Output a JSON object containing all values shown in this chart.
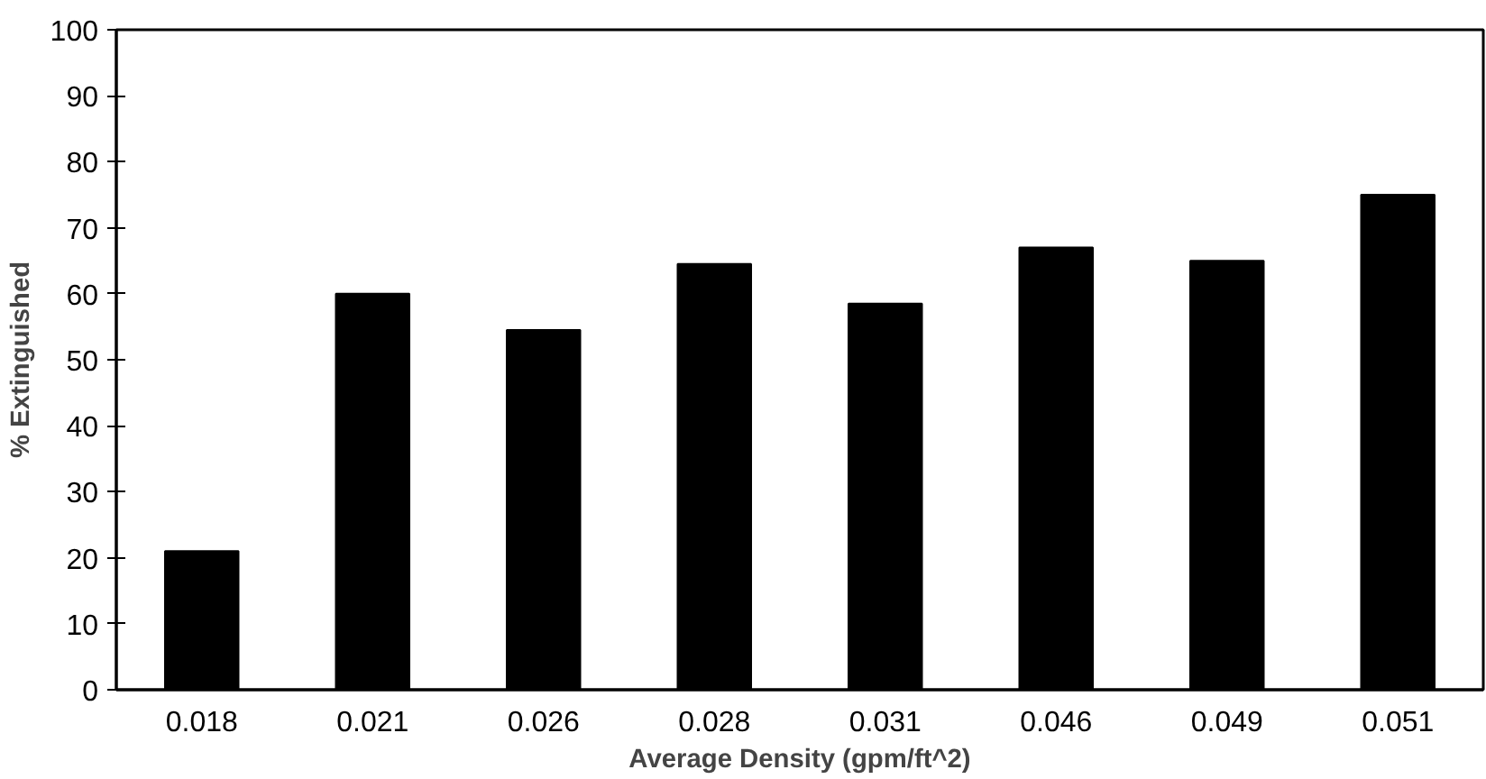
{
  "chart_data": {
    "type": "bar",
    "xlabel": "Average Density (gpm/ft^2)",
    "ylabel": "% Extinguished",
    "categories": [
      "0.018",
      "0.021",
      "0.026",
      "0.028",
      "0.031",
      "0.046",
      "0.049",
      "0.051"
    ],
    "values": [
      21,
      60,
      54.5,
      64.5,
      58.5,
      67,
      65,
      75
    ],
    "color": "#000000",
    "ylim": [
      0,
      100
    ],
    "yticks": [
      0,
      10,
      20,
      30,
      40,
      50,
      60,
      70,
      80,
      90,
      100
    ],
    "grid": false
  }
}
